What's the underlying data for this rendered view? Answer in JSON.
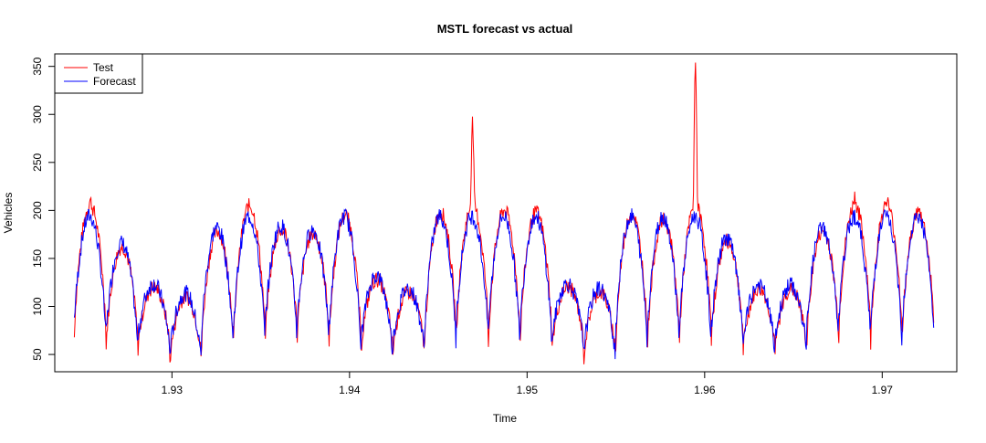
{
  "chart_data": {
    "type": "line",
    "title": "MSTL forecast vs actual",
    "xlabel": "Time",
    "ylabel": "Vehicles",
    "xlim": [
      1.9234,
      1.9742
    ],
    "ylim": [
      32,
      363
    ],
    "x_ticks": [
      1.93,
      1.94,
      1.95,
      1.96,
      1.97
    ],
    "x_tick_labels": [
      "1.93",
      "1.94",
      "1.95",
      "1.96",
      "1.97"
    ],
    "y_ticks": [
      50,
      100,
      150,
      200,
      250,
      300,
      350
    ],
    "y_tick_labels": [
      "50",
      "100",
      "150",
      "200",
      "250",
      "300",
      "350"
    ],
    "x_start": 1.9245,
    "x_end": 1.9729,
    "grid": false,
    "legend_position": "top-left",
    "cycles": [
      {
        "trough": 68,
        "peak": 210
      },
      {
        "trough": 56,
        "peak": 162
      },
      {
        "trough": 56,
        "peak": 120
      },
      {
        "trough": 40,
        "peak": 110
      },
      {
        "trough": 58,
        "peak": 178
      },
      {
        "trough": 60,
        "peak": 205
      },
      {
        "trough": 68,
        "peak": 180
      },
      {
        "trough": 68,
        "peak": 176
      },
      {
        "trough": 58,
        "peak": 195
      },
      {
        "trough": 50,
        "peak": 128
      },
      {
        "trough": 50,
        "peak": 115
      },
      {
        "trough": 58,
        "peak": 198
      },
      {
        "trough": 70,
        "peak": 292
      },
      {
        "trough": 58,
        "peak": 200
      },
      {
        "trough": 62,
        "peak": 198
      },
      {
        "trough": 55,
        "peak": 120
      },
      {
        "trough": 45,
        "peak": 115
      },
      {
        "trough": 58,
        "peak": 196
      },
      {
        "trough": 62,
        "peak": 190
      },
      {
        "trough": 62,
        "peak": 355
      },
      {
        "trough": 60,
        "peak": 168
      },
      {
        "trough": 52,
        "peak": 118
      },
      {
        "trough": 50,
        "peak": 118
      },
      {
        "trough": 62,
        "peak": 178
      },
      {
        "trough": 68,
        "peak": 215
      },
      {
        "trough": 60,
        "peak": 212
      },
      {
        "trough": 68,
        "peak": 198
      }
    ],
    "series": [
      {
        "name": "Test",
        "color": "#ff0000"
      },
      {
        "name": "Forecast",
        "color": "#0000ff"
      }
    ]
  }
}
